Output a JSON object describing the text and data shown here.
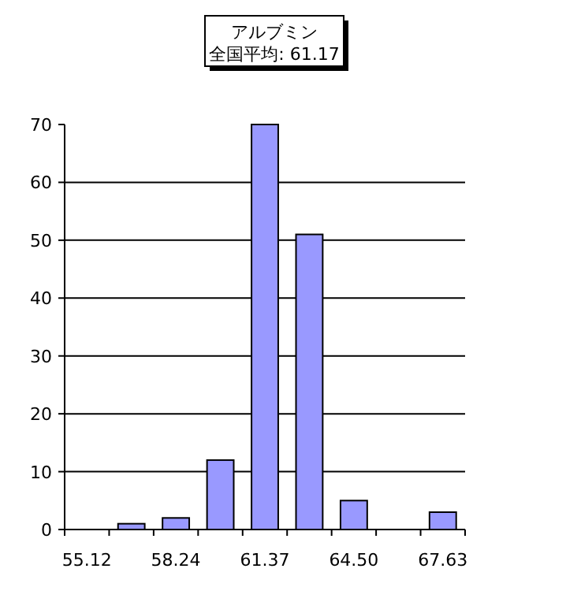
{
  "chart_data": {
    "type": "bar",
    "title": "アルブミン",
    "subtitle": "全国平均: 61.17",
    "categories": [
      "55.12",
      null,
      "58.24",
      null,
      "61.37",
      null,
      "64.50",
      null,
      "67.63"
    ],
    "values": [
      0,
      1,
      2,
      12,
      70,
      51,
      5,
      0,
      3
    ],
    "color": "#9999ff",
    "ylim": [
      0,
      70
    ],
    "yticks": [
      0,
      10,
      20,
      30,
      40,
      50,
      60,
      70
    ],
    "grid": "y"
  }
}
